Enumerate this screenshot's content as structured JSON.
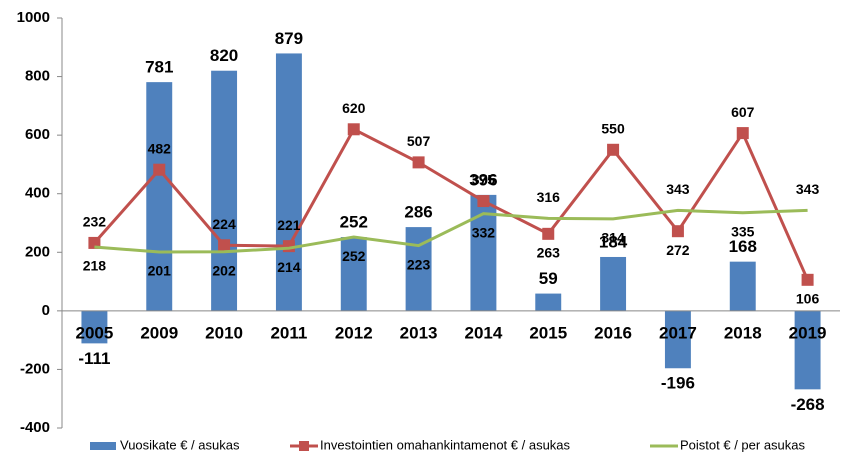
{
  "chart_data": {
    "type": "bar_line",
    "categories": [
      "2005",
      "2009",
      "2010",
      "2011",
      "2012",
      "2013",
      "2014",
      "2015",
      "2016",
      "2017",
      "2018",
      "2019"
    ],
    "series": [
      {
        "name": "Vuosikate € / asukas",
        "type": "bar",
        "color": "#4f81bd",
        "values": [
          -111,
          781,
          820,
          879,
          252,
          286,
          396,
          59,
          184,
          -196,
          168,
          -268
        ]
      },
      {
        "name": "Investointien omahankintamenot € / asukas",
        "type": "line",
        "marker": "square",
        "color": "#c0504d",
        "values": [
          232,
          482,
          224,
          221,
          620,
          507,
          375,
          263,
          550,
          272,
          607,
          106
        ]
      },
      {
        "name": "Poistot € / per asukas",
        "type": "line",
        "color": "#9bbb59",
        "values": [
          218,
          201,
          202,
          214,
          252,
          223,
          332,
          316,
          314,
          343,
          335,
          343
        ]
      }
    ],
    "ylim": [
      -400,
      1000
    ],
    "yticks": [
      -400,
      -200,
      0,
      200,
      400,
      600,
      800,
      1000
    ],
    "grid": false,
    "legend": "bottom"
  }
}
